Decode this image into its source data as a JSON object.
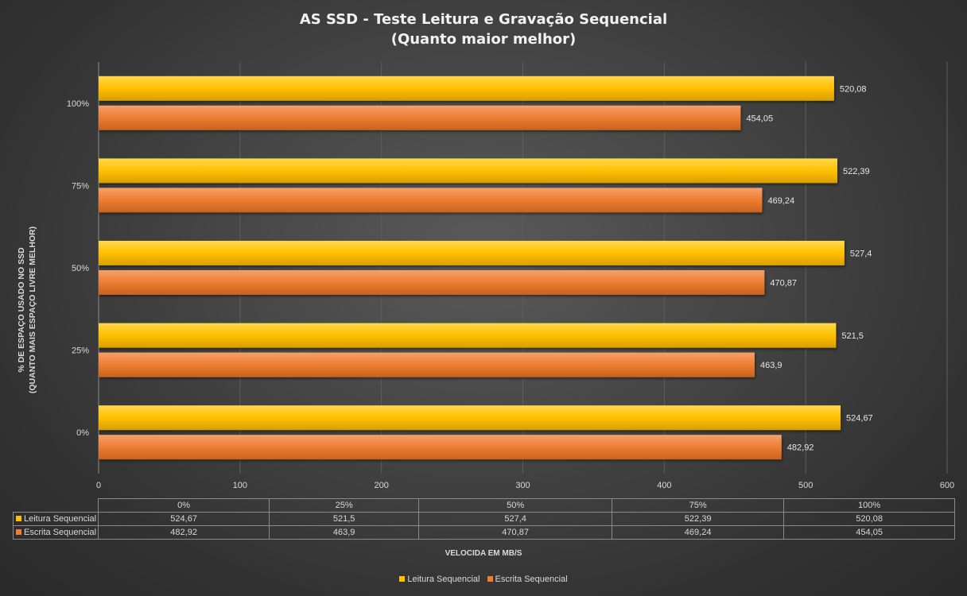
{
  "chart_data": {
    "type": "bar",
    "orientation": "horizontal",
    "title": "AS SSD - Teste Leitura e Gravação Sequencial",
    "subtitle": "(Quanto maior melhor)",
    "categories": [
      "0%",
      "25%",
      "50%",
      "75%",
      "100%"
    ],
    "series": [
      {
        "name": "Leitura Sequencial",
        "color": "#ffc000",
        "values": [
          524.67,
          521.5,
          527.4,
          522.39,
          520.08
        ],
        "value_labels": [
          "524,67",
          "521,5",
          "527,4",
          "522,39",
          "520,08"
        ]
      },
      {
        "name": "Escrita Sequencial",
        "color": "#ed7d31",
        "values": [
          482.92,
          463.9,
          470.87,
          469.24,
          454.05
        ],
        "value_labels": [
          "482,92",
          "463,9",
          "470,87",
          "469,24",
          "454,05"
        ]
      }
    ],
    "xlabel": "VELOCIDA EM MB/S",
    "ylabel": [
      "% DE ESPAÇO USADO NO SSD",
      "(QUANTO MAIS ESPAÇO LIVRE MELHOR)"
    ],
    "xlim": [
      0,
      600
    ],
    "xticks": [
      0,
      100,
      200,
      300,
      400,
      500,
      600
    ],
    "gridlines": "vertical",
    "legend": "bottom",
    "data_table": true
  }
}
